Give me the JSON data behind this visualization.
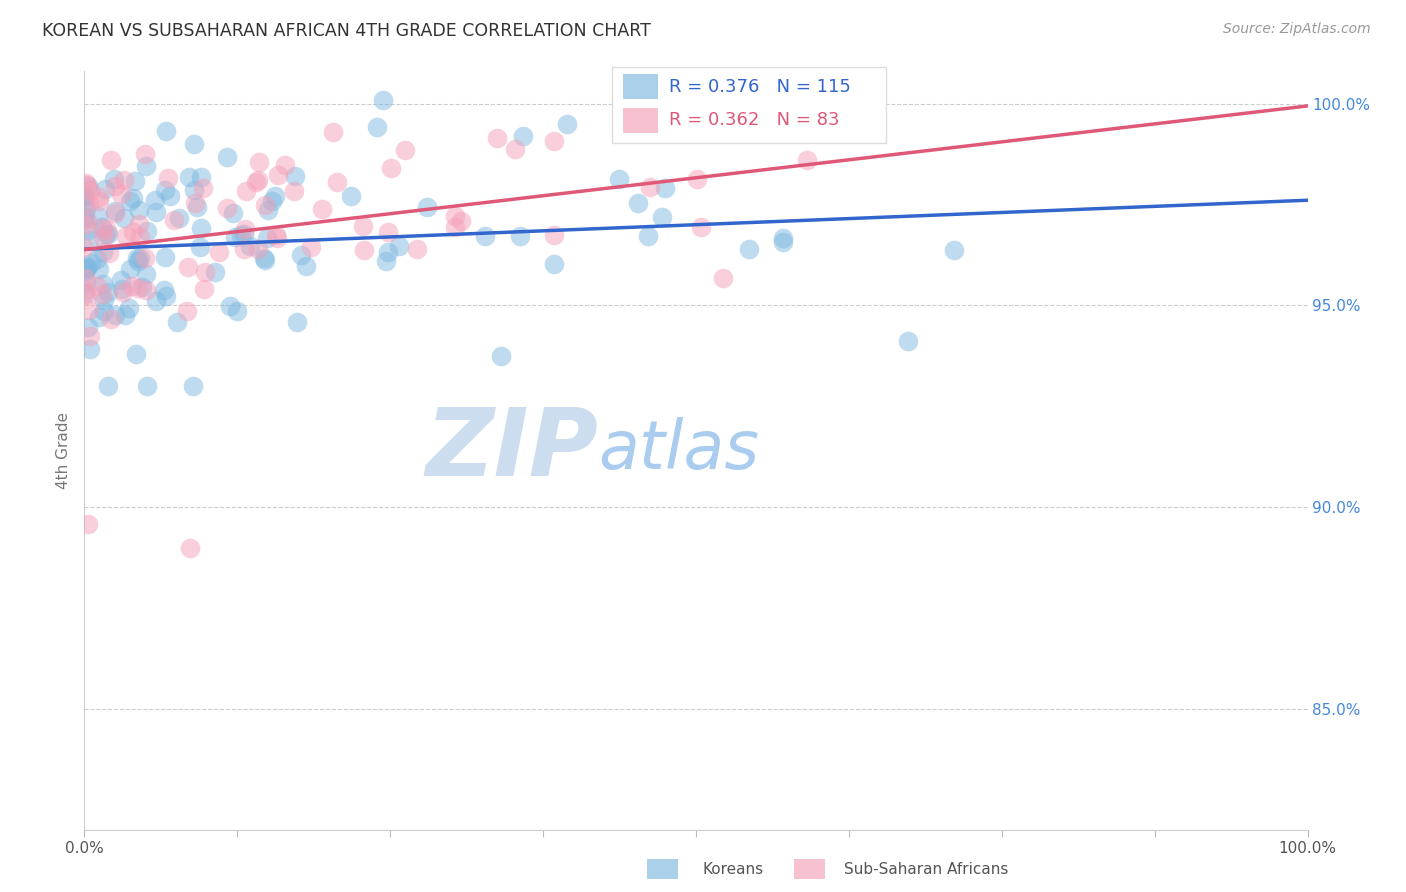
{
  "title": "KOREAN VS SUBSAHARAN AFRICAN 4TH GRADE CORRELATION CHART",
  "source": "Source: ZipAtlas.com",
  "ylabel": "4th Grade",
  "xlim": [
    0.0,
    1.0
  ],
  "ylim": [
    0.82,
    1.008
  ],
  "yticks": [
    0.85,
    0.9,
    0.95,
    1.0
  ],
  "ytick_labels": [
    "85.0%",
    "90.0%",
    "95.0%",
    "100.0%"
  ],
  "korean_R": 0.376,
  "korean_N": 115,
  "african_R": 0.362,
  "african_N": 83,
  "korean_color": "#7fb8e0",
  "african_color": "#f5a0b8",
  "trendline_korean_color": "#3366cc",
  "trendline_african_color": "#e05878",
  "background_color": "#ffffff",
  "grid_color": "#cccccc",
  "title_color": "#333333",
  "right_tick_color": "#4488dd",
  "watermark_zip_color": "#ccddf0",
  "watermark_atlas_color": "#aaccee"
}
